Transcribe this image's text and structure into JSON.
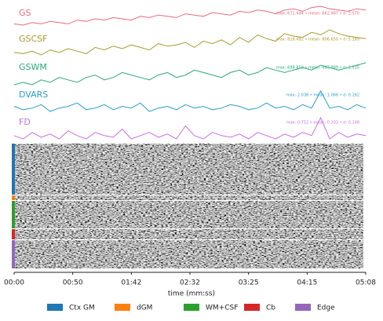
{
  "chart_data": [
    {
      "type": "line",
      "title": "GS",
      "color": "#e8697d",
      "annotation": "max: 671.444 • mean: 662.987 • σ: 3.570",
      "values": [
        657,
        656,
        658,
        657,
        659,
        658,
        657,
        660,
        659,
        661,
        660,
        662,
        661,
        660,
        663,
        662,
        664,
        663,
        662,
        665,
        664,
        663,
        666,
        665,
        664,
        667,
        666,
        668,
        667,
        665,
        668,
        669,
        667,
        670,
        671,
        669,
        668,
        667,
        669,
        668
      ]
    },
    {
      "type": "line",
      "title": "GSCSF",
      "color": "#a89a2a",
      "annotation": "max: 818.492 • mean: 806.650 • σ: 5.189",
      "values": [
        800,
        799,
        801,
        798,
        802,
        800,
        803,
        801,
        799,
        804,
        802,
        805,
        803,
        806,
        804,
        802,
        807,
        805,
        806,
        808,
        804,
        809,
        807,
        810,
        806,
        812,
        808,
        814,
        811,
        809,
        815,
        813,
        812,
        816,
        814,
        818,
        815,
        813,
        812,
        811
      ]
    },
    {
      "type": "line",
      "title": "GSWM",
      "color": "#2aa87a",
      "annotation": "max: 698.850 • mean: 693.989 • σ: 2.015",
      "values": [
        690,
        691,
        690,
        692,
        691,
        693,
        692,
        691,
        693,
        694,
        692,
        693,
        695,
        694,
        693,
        692,
        694,
        695,
        693,
        694,
        696,
        695,
        694,
        693,
        695,
        696,
        694,
        695,
        697,
        696,
        695,
        696,
        697,
        696,
        698,
        697,
        696,
        697,
        698,
        699
      ]
    },
    {
      "type": "line",
      "title": "DVARS",
      "color": "#2a9fc4",
      "annotation": "max: 2.038 • mean: 1.068 • σ: 0.192",
      "values": [
        1.1,
        0.9,
        1.0,
        1.2,
        0.8,
        1.0,
        1.1,
        1.3,
        0.9,
        1.0,
        1.2,
        0.9,
        1.1,
        1.0,
        1.3,
        0.8,
        1.0,
        1.1,
        0.9,
        1.2,
        1.0,
        1.1,
        0.9,
        1.0,
        1.2,
        1.1,
        0.9,
        1.0,
        1.3,
        1.0,
        1.1,
        0.9,
        1.2,
        1.0,
        2.0,
        1.0,
        1.1,
        0.9,
        1.2,
        1.0
      ]
    },
    {
      "type": "line",
      "title": "FD",
      "color": "#c86ee6",
      "annotation": "max: 0.752 • mean: 0.203 • σ: 0.148",
      "values": [
        0.2,
        0.1,
        0.3,
        0.15,
        0.25,
        0.1,
        0.35,
        0.2,
        0.1,
        0.3,
        0.2,
        0.15,
        0.4,
        0.1,
        0.2,
        0.3,
        0.15,
        0.25,
        0.1,
        0.5,
        0.2,
        0.1,
        0.3,
        0.2,
        0.15,
        0.25,
        0.1,
        0.3,
        0.2,
        0.1,
        0.25,
        0.15,
        0.3,
        0.2,
        0.75,
        0.1,
        0.3,
        0.15,
        0.25,
        0.2
      ]
    },
    {
      "type": "carpet",
      "xlabel": "time (mm:ss)",
      "x": [
        "00:00",
        "00:50",
        "01:42",
        "02:32",
        "03:25",
        "04:15",
        "05:08"
      ],
      "legend": [
        {
          "name": "Ctx GM",
          "color": "#1f77b4"
        },
        {
          "name": "dGM",
          "color": "#ff7f0e"
        },
        {
          "name": "WM+CSF",
          "color": "#2ca02c"
        },
        {
          "name": "Cb",
          "color": "#d62728"
        },
        {
          "name": "Edge",
          "color": "#9467bd"
        }
      ]
    }
  ]
}
